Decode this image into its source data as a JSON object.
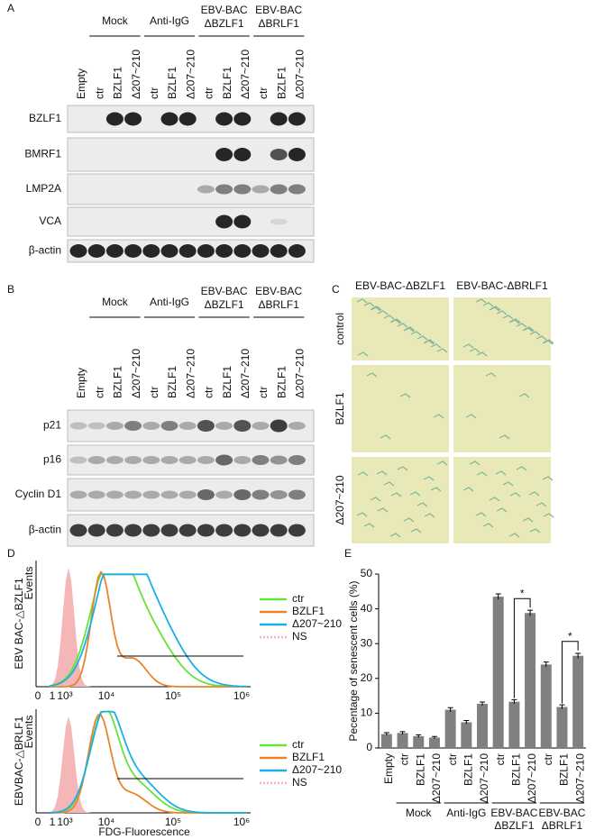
{
  "figure": {
    "panel_a": {
      "letter": "A",
      "groups": [
        {
          "lines": [
            "Mock"
          ]
        },
        {
          "lines": [
            "Anti-IgG"
          ]
        },
        {
          "lines": [
            "EBV-BAC",
            "ΔBZLF1"
          ]
        },
        {
          "lines": [
            "EBV-BAC",
            "ΔBRLF1"
          ]
        }
      ],
      "lanes": [
        "Empty",
        "ctr",
        "BZLF1",
        "Δ207~210",
        "ctr",
        "BZLF1",
        "Δ207~210",
        "ctr",
        "BZLF1",
        "Δ207~210",
        "ctr",
        "BZLF1",
        "Δ207~210"
      ],
      "rows": [
        "BZLF1",
        "BMRF1",
        "LMP2A",
        "VCA",
        "β-actin"
      ]
    },
    "panel_b": {
      "letter": "B",
      "groups": [
        {
          "lines": [
            "Mock"
          ]
        },
        {
          "lines": [
            "Anti-IgG"
          ]
        },
        {
          "lines": [
            "EBV-BAC",
            "ΔBZLF1"
          ]
        },
        {
          "lines": [
            "EBV-BAC",
            "ΔBRLF1"
          ]
        }
      ],
      "lanes": [
        "Empty",
        "ctr",
        "BZLF1",
        "Δ207~210",
        "ctr",
        "BZLF1",
        "Δ207~210",
        "ctr",
        "BZLF1",
        "Δ207~210",
        "ctr",
        "BZLF1",
        "Δ207~210"
      ],
      "rows": [
        "p21",
        "p16",
        "Cyclin D1",
        "β-actin"
      ]
    },
    "panel_c": {
      "letter": "C",
      "columns": [
        "EBV-BAC-ΔBZLF1",
        "EBV-BAC-ΔBRLF1"
      ],
      "rows": [
        "control",
        "BZLF1",
        "Δ207~210"
      ]
    },
    "panel_d": {
      "letter": "D",
      "xlabel": "FDG-Fluorescence",
      "xticks": [
        "0",
        "1",
        "10³",
        "10⁴",
        "10⁵",
        "10⁶"
      ],
      "plots": [
        {
          "ylabel": "EBV BAC-△BZLF1",
          "ylabel2": "Events"
        },
        {
          "ylabel": "EBVBAC-△BRLF1",
          "ylabel2": "Events"
        }
      ],
      "legend": [
        {
          "name": "ctr",
          "color": "#66e23c"
        },
        {
          "name": "BZLF1",
          "color": "#e8852b"
        },
        {
          "name": "Δ207~210",
          "color": "#1ab0e6"
        },
        {
          "name": "NS",
          "color": "#f4b6b6"
        }
      ]
    }
  },
  "chart_data": {
    "type": "bar",
    "letter": "E",
    "ylabel": "Pecentage of senescent cells (%)",
    "categories": [
      "Empty",
      "ctr",
      "BZLF1",
      "Δ207~210",
      "ctr",
      "BZLF1",
      "Δ207~210",
      "ctr",
      "BZLF1",
      "Δ207~210",
      "ctr",
      "BZLF1",
      "Δ207~210"
    ],
    "groups": [
      {
        "lines": [
          "Mock"
        ]
      },
      {
        "lines": [
          "Anti-IgG"
        ]
      },
      {
        "lines": [
          "EBV-BAC",
          "ΔBZLF1"
        ]
      },
      {
        "lines": [
          "EBV-BAC",
          "ΔBRLF1"
        ]
      }
    ],
    "values": [
      4,
      4.3,
      3.4,
      3,
      11,
      7.4,
      12.7,
      43.5,
      13.3,
      38.8,
      24,
      11.8,
      26.5
    ],
    "errors": [
      0.4,
      0.4,
      0.4,
      0.3,
      0.6,
      0.5,
      0.5,
      0.8,
      0.6,
      0.8,
      0.7,
      0.6,
      0.7
    ],
    "color": "#808080",
    "ylim": [
      0,
      50
    ],
    "yticks": [
      0,
      10,
      20,
      30,
      40,
      50
    ],
    "annotations": [
      "*",
      "*"
    ]
  }
}
